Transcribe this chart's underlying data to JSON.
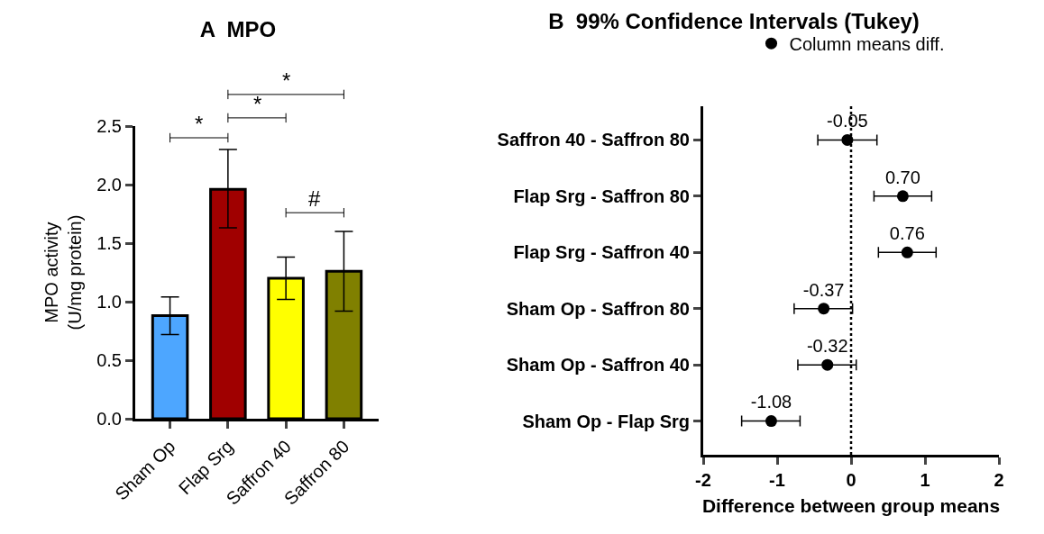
{
  "chart_data": [
    {
      "type": "bar",
      "title": "A  MPO",
      "ylabel": "MPO activity\n(U/mg protein)",
      "categories": [
        "Sham Op",
        "Flap Srg",
        "Saffron 40",
        "Saffron 80"
      ],
      "values": [
        0.88,
        1.96,
        1.2,
        1.26
      ],
      "colors": [
        "#4da6ff",
        "#a00000",
        "#ffff00",
        "#808000"
      ],
      "errors": [
        [
          0.72,
          1.04
        ],
        [
          1.63,
          2.3
        ],
        [
          1.02,
          1.38
        ],
        [
          0.92,
          1.6
        ]
      ],
      "ylim": [
        0,
        2.5
      ],
      "yticks": [
        {
          "value": 0,
          "label": "0.0"
        },
        {
          "value": 0.5,
          "label": "0.5"
        },
        {
          "value": 1,
          "label": "1.0"
        },
        {
          "value": 1.5,
          "label": "1.5"
        },
        {
          "value": 2,
          "label": "2.0"
        },
        {
          "value": 2.5,
          "label": "2.5"
        }
      ],
      "annotations": [
        "*",
        "*",
        "*",
        "#"
      ],
      "grid": false,
      "legend": false
    },
    {
      "type": "scatter",
      "orientation": "horizontal",
      "title": "B  99% Confidence Intervals (Tukey)",
      "xlabel": "Difference between group means",
      "categories": [
        "Saffron 40 - Saffron 80",
        "Flap Srg - Saffron 80",
        "Flap Srg - Saffron 40",
        "Sham Op - Saffron 80",
        "Sham Op - Saffron 40",
        "Sham Op - Flap Srg"
      ],
      "series": [
        {
          "name": "Column means diff.",
          "color": "#000000",
          "values": [
            -0.05,
            0.7,
            0.76,
            -0.37,
            -0.32,
            -1.08
          ],
          "errors": [
            [
              -0.45,
              0.35
            ],
            [
              0.31,
              1.09
            ],
            [
              0.37,
              1.15
            ],
            [
              -0.77,
              0.02
            ],
            [
              -0.72,
              0.07
            ],
            [
              -1.48,
              -0.69
            ]
          ],
          "value_labels": [
            "-0.05",
            "0.70",
            "0.76",
            "-0.37",
            "-0.32",
            "-1.08"
          ]
        }
      ],
      "xlim": [
        -2,
        2
      ],
      "xticks": [
        -2,
        -1,
        0,
        1,
        2
      ],
      "ref_lines": [
        {
          "axis": "x",
          "value": 0,
          "line_style": "dotted",
          "color": "#000000"
        }
      ],
      "marker": "circle",
      "legend": "top",
      "grid": false
    }
  ]
}
